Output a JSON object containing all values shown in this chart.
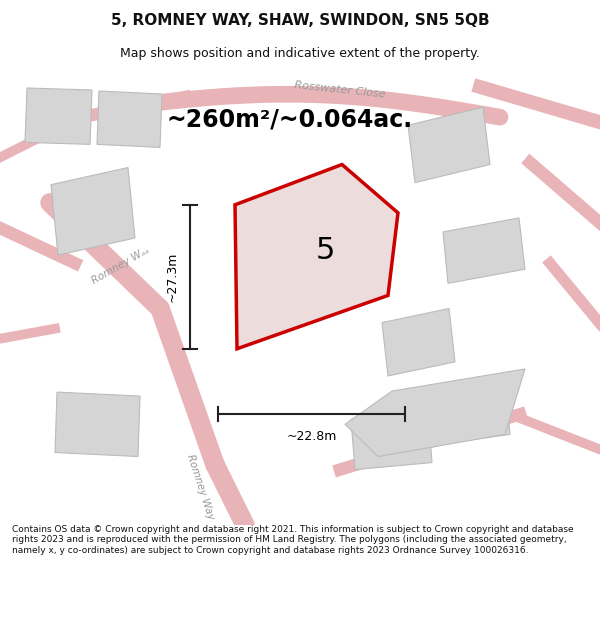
{
  "title": "5, ROMNEY WAY, SHAW, SWINDON, SN5 5QB",
  "subtitle": "Map shows position and indicative extent of the property.",
  "area_text": "~260m²/~0.064ac.",
  "dim_vertical": "~27.3m",
  "dim_horizontal": "~22.8m",
  "label_number": "5",
  "footer": "Contains OS data © Crown copyright and database right 2021. This information is subject to Crown copyright and database rights 2023 and is reproduced with the permission of HM Land Registry. The polygons (including the associated geometry, namely x, y co-ordinates) are subject to Crown copyright and database rights 2023 Ordnance Survey 100026316.",
  "map_bg": "#f0f0eb",
  "road_color": "#e8b4b8",
  "building_color": "#d5d5d5",
  "building_edge": "#bbbbbb",
  "property_color": "#ecdcdc",
  "property_edge": "#cc0000",
  "dim_line_color": "#222222",
  "title_color": "#111111",
  "footer_color": "#111111",
  "street_label_color": "#999999"
}
